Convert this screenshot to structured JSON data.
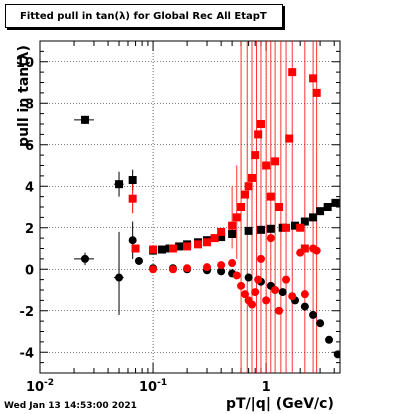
{
  "chart_data": {
    "type": "scatter",
    "title": "Fitted pull in tan(λ) for Global Rec All EtapT",
    "xlabel": "pT/|q| (GeV/c)",
    "ylabel": "pull in tan(λ)",
    "xscale": "log",
    "xlim": [
      0.01,
      4.5
    ],
    "ylim": [
      -5,
      11
    ],
    "grid": true,
    "x_ticks": [
      {
        "value": 0.01,
        "base": "10",
        "exp": "-2"
      },
      {
        "value": 0.1,
        "base": "10",
        "exp": "-1"
      },
      {
        "value": 1,
        "base": "1",
        "exp": ""
      }
    ],
    "y_ticks": [
      -4,
      -2,
      0,
      2,
      4,
      6,
      8,
      10
    ],
    "series": [
      {
        "color": "#000000",
        "marker": "square",
        "points": [
          {
            "x": 0.025,
            "y": 7.2,
            "ex": [
              0.02,
              0.03
            ],
            "ey": [
              7.0,
              7.4
            ]
          },
          {
            "x": 0.05,
            "y": 4.1,
            "ex": [
              0.045,
              0.055
            ],
            "ey": [
              3.5,
              4.7
            ]
          },
          {
            "x": 0.066,
            "y": 4.3,
            "ex": [
              0.062,
              0.07
            ],
            "ey": [
              3.8,
              4.8
            ]
          },
          {
            "x": 0.1,
            "y": 0.9
          },
          {
            "x": 0.12,
            "y": 0.95
          },
          {
            "x": 0.14,
            "y": 1.0
          },
          {
            "x": 0.17,
            "y": 1.1
          },
          {
            "x": 0.2,
            "y": 1.2
          },
          {
            "x": 0.25,
            "y": 1.3
          },
          {
            "x": 0.3,
            "y": 1.4
          },
          {
            "x": 0.4,
            "y": 1.55
          },
          {
            "x": 0.5,
            "y": 1.7
          },
          {
            "x": 0.7,
            "y": 1.85
          },
          {
            "x": 0.9,
            "y": 1.9
          },
          {
            "x": 1.1,
            "y": 1.95
          },
          {
            "x": 1.4,
            "y": 2.0
          },
          {
            "x": 1.8,
            "y": 2.1
          },
          {
            "x": 2.2,
            "y": 2.3
          },
          {
            "x": 2.6,
            "y": 2.5
          },
          {
            "x": 3.0,
            "y": 2.8
          },
          {
            "x": 3.5,
            "y": 3.0
          },
          {
            "x": 4.1,
            "y": 3.2
          }
        ]
      },
      {
        "color": "#000000",
        "marker": "circle",
        "points": [
          {
            "x": 0.025,
            "y": 0.5,
            "ex": [
              0.02,
              0.03
            ],
            "ey": [
              0.2,
              0.8
            ]
          },
          {
            "x": 0.05,
            "y": -0.4,
            "ex": [
              0.045,
              0.055
            ],
            "ey": [
              -2.2,
              1.8
            ]
          },
          {
            "x": 0.066,
            "y": 1.4,
            "ex": [
              0.062,
              0.07
            ],
            "ey": [
              0.5,
              2.3
            ]
          },
          {
            "x": 0.075,
            "y": 0.4
          },
          {
            "x": 0.1,
            "y": 0.05
          },
          {
            "x": 0.15,
            "y": 0.05
          },
          {
            "x": 0.2,
            "y": 0.0
          },
          {
            "x": 0.3,
            "y": -0.05
          },
          {
            "x": 0.4,
            "y": -0.1
          },
          {
            "x": 0.5,
            "y": -0.2
          },
          {
            "x": 0.7,
            "y": -0.4
          },
          {
            "x": 0.9,
            "y": -0.6
          },
          {
            "x": 1.1,
            "y": -0.8
          },
          {
            "x": 1.4,
            "y": -1.1
          },
          {
            "x": 1.8,
            "y": -1.5
          },
          {
            "x": 2.2,
            "y": -1.8
          },
          {
            "x": 2.6,
            "y": -2.2
          },
          {
            "x": 3.0,
            "y": -2.6
          },
          {
            "x": 3.6,
            "y": -3.4
          },
          {
            "x": 4.3,
            "y": -4.1
          }
        ]
      },
      {
        "color": "#ff0000",
        "marker": "square",
        "points": [
          {
            "x": 0.066,
            "y": 3.4,
            "ex": [
              0.062,
              0.07
            ],
            "ey": [
              2.7,
              4.1
            ]
          },
          {
            "x": 0.07,
            "y": 1.0
          },
          {
            "x": 0.1,
            "y": 0.95
          },
          {
            "x": 0.15,
            "y": 1.0
          },
          {
            "x": 0.2,
            "y": 1.1
          },
          {
            "x": 0.25,
            "y": 1.2
          },
          {
            "x": 0.3,
            "y": 1.3
          },
          {
            "x": 0.35,
            "y": 1.5
          },
          {
            "x": 0.4,
            "y": 1.8
          },
          {
            "x": 0.5,
            "y": 2.1
          },
          {
            "x": 0.55,
            "y": 2.5
          },
          {
            "x": 0.6,
            "y": 3.0
          },
          {
            "x": 0.65,
            "y": 3.6
          },
          {
            "x": 0.7,
            "y": 4.0
          },
          {
            "x": 0.75,
            "y": 4.4
          },
          {
            "x": 0.8,
            "y": 5.5
          },
          {
            "x": 0.85,
            "y": 6.5
          },
          {
            "x": 0.9,
            "y": 7.0
          },
          {
            "x": 1.0,
            "y": 5.0
          },
          {
            "x": 1.1,
            "y": 3.5
          },
          {
            "x": 1.2,
            "y": 5.2
          },
          {
            "x": 1.3,
            "y": 3.0
          },
          {
            "x": 1.5,
            "y": 2.0
          },
          {
            "x": 1.6,
            "y": 6.3
          },
          {
            "x": 1.7,
            "y": 9.5
          },
          {
            "x": 2.0,
            "y": 2.0
          },
          {
            "x": 2.2,
            "y": 1.0
          },
          {
            "x": 2.6,
            "y": 9.2
          },
          {
            "x": 2.8,
            "y": 8.5
          }
        ]
      },
      {
        "color": "#ff0000",
        "marker": "circle",
        "points": [
          {
            "x": 0.1,
            "y": 0.0
          },
          {
            "x": 0.15,
            "y": 0.0
          },
          {
            "x": 0.2,
            "y": 0.05
          },
          {
            "x": 0.3,
            "y": 0.1
          },
          {
            "x": 0.4,
            "y": 0.2
          },
          {
            "x": 0.5,
            "y": 0.3
          },
          {
            "x": 0.55,
            "y": -0.3
          },
          {
            "x": 0.6,
            "y": -0.8
          },
          {
            "x": 0.65,
            "y": -1.2
          },
          {
            "x": 0.7,
            "y": -1.5
          },
          {
            "x": 0.75,
            "y": -1.7
          },
          {
            "x": 0.8,
            "y": -1.1
          },
          {
            "x": 0.85,
            "y": -0.5
          },
          {
            "x": 0.9,
            "y": 0.5
          },
          {
            "x": 1.0,
            "y": -1.5
          },
          {
            "x": 1.1,
            "y": 1.5
          },
          {
            "x": 1.2,
            "y": -1.0
          },
          {
            "x": 1.3,
            "y": -2.0
          },
          {
            "x": 1.5,
            "y": -0.5
          },
          {
            "x": 1.7,
            "y": -1.3
          },
          {
            "x": 2.0,
            "y": 0.8
          },
          {
            "x": 2.2,
            "y": -1.2
          },
          {
            "x": 2.6,
            "y": 1.0
          },
          {
            "x": 2.8,
            "y": 0.9
          }
        ]
      }
    ],
    "red_error_bars": [
      {
        "x": 0.6,
        "y1": -5,
        "y2": 11
      },
      {
        "x": 0.68,
        "y1": -5,
        "y2": 11
      },
      {
        "x": 0.75,
        "y1": -5,
        "y2": 11
      },
      {
        "x": 0.82,
        "y1": -5,
        "y2": 11
      },
      {
        "x": 0.9,
        "y1": -5,
        "y2": 11
      },
      {
        "x": 1.0,
        "y1": -5,
        "y2": 11
      },
      {
        "x": 1.1,
        "y1": -5,
        "y2": 11
      },
      {
        "x": 1.2,
        "y1": -5,
        "y2": 11
      },
      {
        "x": 1.35,
        "y1": -5,
        "y2": 11
      },
      {
        "x": 1.5,
        "y1": -5,
        "y2": 11
      },
      {
        "x": 1.7,
        "y1": -5,
        "y2": 11
      },
      {
        "x": 2.2,
        "y1": -5,
        "y2": 11
      },
      {
        "x": 2.6,
        "y1": -5,
        "y2": 11
      },
      {
        "x": 2.8,
        "y1": -5,
        "y2": 11
      },
      {
        "x": 0.5,
        "y1": 1.0,
        "y2": 4.0
      },
      {
        "x": 0.55,
        "y1": 0.5,
        "y2": 5.0
      }
    ]
  },
  "footer": {
    "timestamp": "Wed Jan 13 14:53:00 2021"
  }
}
